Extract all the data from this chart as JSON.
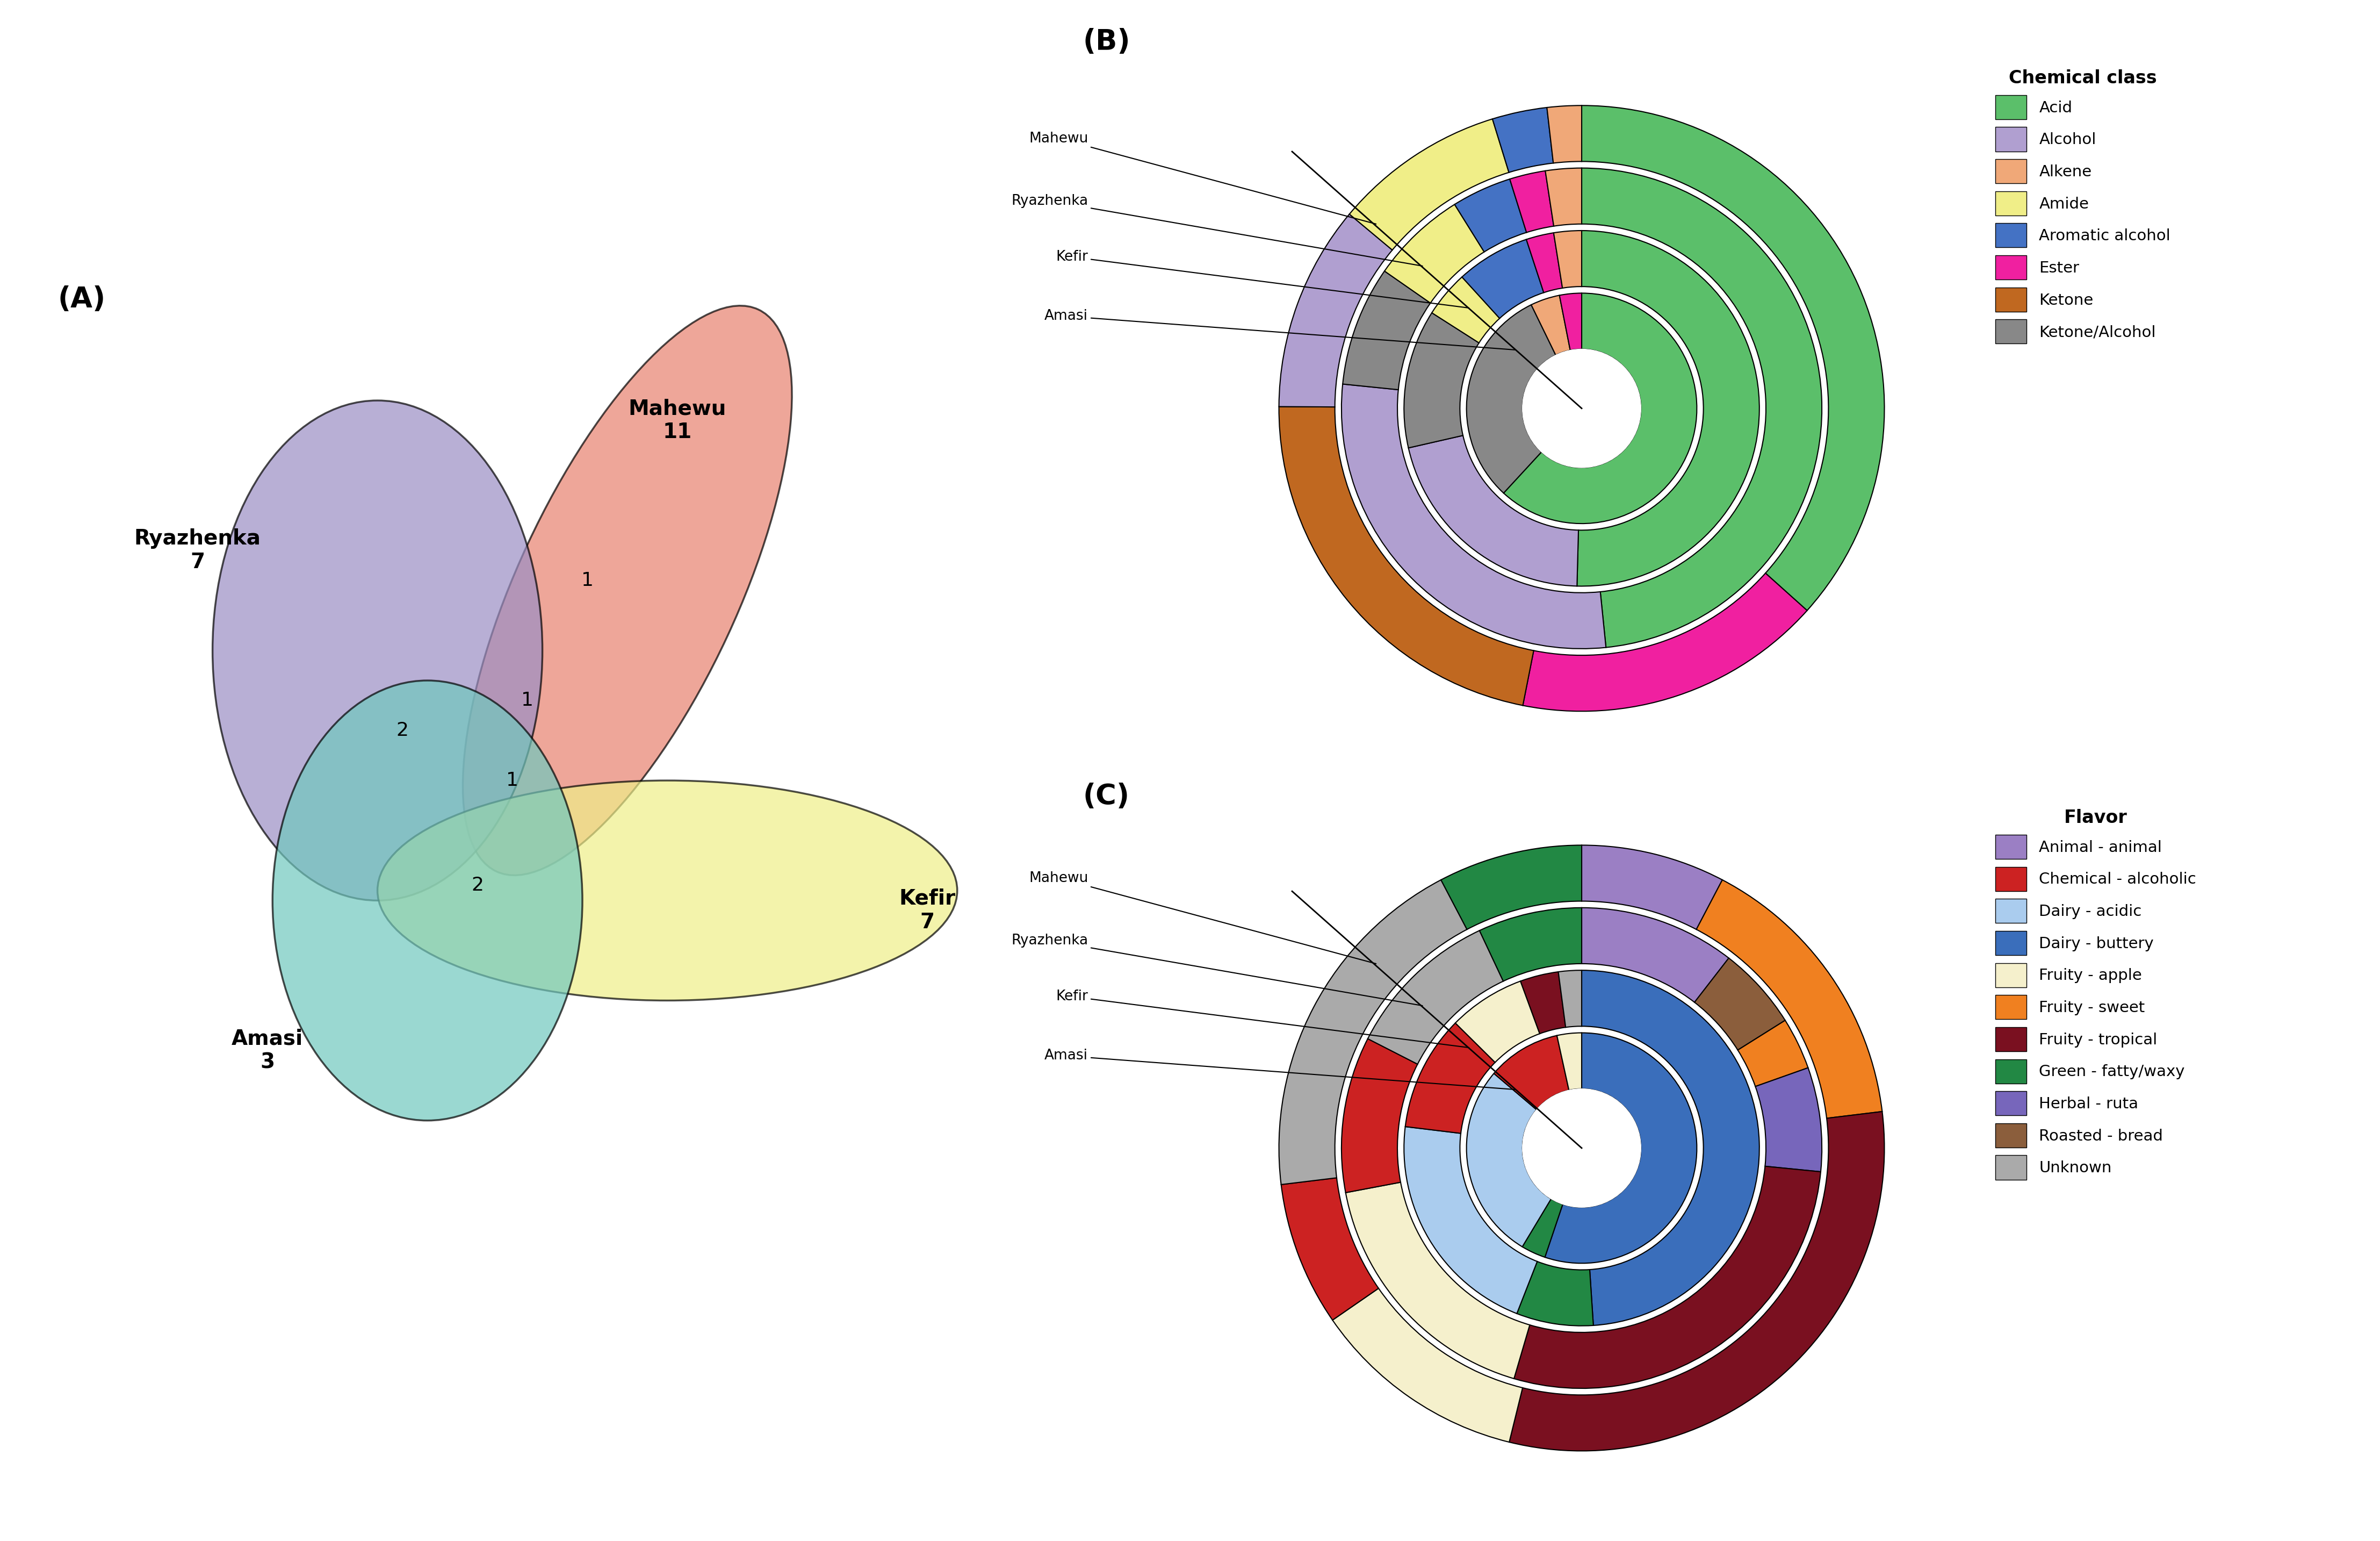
{
  "venn": {
    "mahewu": {
      "label": "Mahewu",
      "count": "11",
      "color": "#E8806E",
      "alpha": 0.7
    },
    "ryazhenka": {
      "label": "Ryazhenka",
      "count": "7",
      "color": "#9B8EC4",
      "alpha": 0.7
    },
    "kefir": {
      "label": "Kefir",
      "count": "7",
      "color": "#EEEE88",
      "alpha": 0.7
    },
    "amasi": {
      "label": "Amasi",
      "count": "3",
      "color": "#70C8BE",
      "alpha": 0.7
    }
  },
  "chemical_class": {
    "legend_title": "Chemical class",
    "colors": {
      "Acid": "#5BBF6A",
      "Alcohol": "#B09FD0",
      "Alkene": "#F0A878",
      "Amide": "#F0EE88",
      "Aromatic alcohol": "#4472C4",
      "Ester": "#F020A0",
      "Ketone": "#C06820",
      "Ketone/Alcohol": "#888888"
    },
    "ring_names": [
      "Amasi",
      "Kefir",
      "Ryazhenka",
      "Mahewu"
    ],
    "ring_data": [
      [
        {
          "class": "Acid",
          "value": 6
        },
        {
          "class": "Ketone/Alcohol",
          "value": 3
        },
        {
          "class": "Alkene",
          "value": 0.4
        },
        {
          "class": "Ester",
          "value": 0.3
        }
      ],
      [
        {
          "class": "Acid",
          "value": 6
        },
        {
          "class": "Alcohol",
          "value": 2.5
        },
        {
          "class": "Ketone/Alcohol",
          "value": 1.5
        },
        {
          "class": "Amide",
          "value": 0.5
        },
        {
          "class": "Aromatic alcohol",
          "value": 0.8
        },
        {
          "class": "Ester",
          "value": 0.3
        },
        {
          "class": "Alkene",
          "value": 0.3
        }
      ],
      [
        {
          "class": "Acid",
          "value": 6
        },
        {
          "class": "Alcohol",
          "value": 3.5
        },
        {
          "class": "Ketone/Alcohol",
          "value": 1
        },
        {
          "class": "Amide",
          "value": 0.8
        },
        {
          "class": "Aromatic alcohol",
          "value": 0.5
        },
        {
          "class": "Ester",
          "value": 0.3
        },
        {
          "class": "Alkene",
          "value": 0.3
        }
      ],
      [
        {
          "class": "Acid",
          "value": 10
        },
        {
          "class": "Ester",
          "value": 4.5
        },
        {
          "class": "Ketone",
          "value": 6
        },
        {
          "class": "Alcohol",
          "value": 3
        },
        {
          "class": "Amide",
          "value": 2.5
        },
        {
          "class": "Aromatic alcohol",
          "value": 0.8
        },
        {
          "class": "Alkene",
          "value": 0.5
        }
      ]
    ]
  },
  "flavor": {
    "legend_title": "Flavor",
    "colors": {
      "Animal - animal": "#9B7FC4",
      "Chemical - alcoholic": "#CC2222",
      "Dairy - acidic": "#AACCEE",
      "Dairy - buttery": "#3A6EBB",
      "Fruity - apple": "#F5F0CC",
      "Fruity - sweet": "#F08020",
      "Fruity - tropical": "#7A1020",
      "Green - fatty/waxy": "#228844",
      "Herbal - ruta": "#7766BB",
      "Roasted - bread": "#8B5E3C",
      "Unknown": "#AAAAAA"
    },
    "ring_names": [
      "Amasi",
      "Kefir",
      "Ryazhenka",
      "Mahewu"
    ],
    "ring_data": [
      [
        {
          "class": "Dairy - buttery",
          "value": 8
        },
        {
          "class": "Green - fatty/waxy",
          "value": 0.5
        },
        {
          "class": "Dairy - acidic",
          "value": 4
        },
        {
          "class": "Chemical - alcoholic",
          "value": 1.5
        },
        {
          "class": "Fruity - apple",
          "value": 0.5
        }
      ],
      [
        {
          "class": "Dairy - buttery",
          "value": 7
        },
        {
          "class": "Green - fatty/waxy",
          "value": 1
        },
        {
          "class": "Dairy - acidic",
          "value": 3
        },
        {
          "class": "Chemical - alcoholic",
          "value": 1.5
        },
        {
          "class": "Fruity - apple",
          "value": 1
        },
        {
          "class": "Fruity - tropical",
          "value": 0.5
        },
        {
          "class": "Unknown",
          "value": 0.3
        }
      ],
      [
        {
          "class": "Animal - animal",
          "value": 1.5
        },
        {
          "class": "Roasted - bread",
          "value": 0.8
        },
        {
          "class": "Fruity - sweet",
          "value": 0.5
        },
        {
          "class": "Herbal - ruta",
          "value": 1
        },
        {
          "class": "Fruity - tropical",
          "value": 4
        },
        {
          "class": "Fruity - apple",
          "value": 2.5
        },
        {
          "class": "Chemical - alcoholic",
          "value": 1.5
        },
        {
          "class": "Unknown",
          "value": 1.5
        },
        {
          "class": "Green - fatty/waxy",
          "value": 1
        }
      ],
      [
        {
          "class": "Animal - animal",
          "value": 2
        },
        {
          "class": "Fruity - sweet",
          "value": 4
        },
        {
          "class": "Fruity - tropical",
          "value": 8
        },
        {
          "class": "Fruity - apple",
          "value": 3
        },
        {
          "class": "Chemical - alcoholic",
          "value": 2
        },
        {
          "class": "Unknown",
          "value": 5
        },
        {
          "class": "Green - fatty/waxy",
          "value": 2
        }
      ]
    ]
  }
}
